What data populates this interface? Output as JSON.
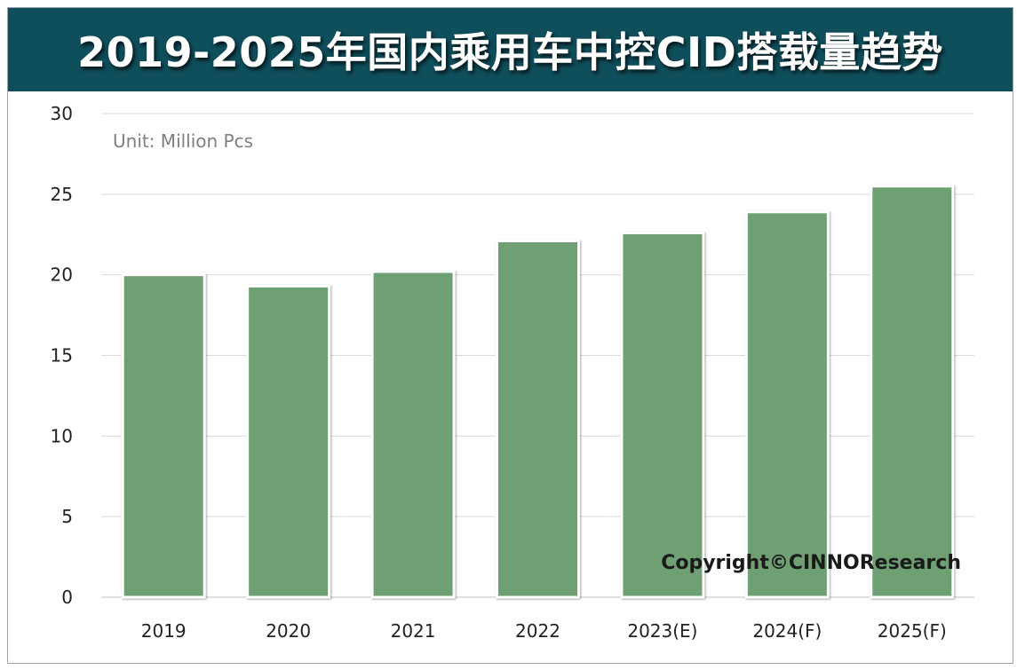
{
  "title": "2019-2025年国内乘用车中控CID搭载量趋势",
  "unit_label": "Unit: Million Pcs",
  "copyright": "Copyright©CINNOResearch",
  "colors": {
    "title_bar": "#0f4e5b",
    "bar_fill": "#6fa073",
    "bar_stroke": "#ffffff",
    "grid": "#d9d9d9"
  },
  "chart_data": {
    "type": "bar",
    "categories": [
      "2019",
      "2020",
      "2021",
      "2022",
      "2023(E)",
      "2024(F)",
      "2025(F)"
    ],
    "values": [
      20.0,
      19.3,
      20.2,
      22.1,
      22.6,
      23.9,
      25.5
    ],
    "title": "2019-2025年国内乘用车中控CID搭载量趋势",
    "ylim": [
      0,
      30
    ],
    "yticks": [
      0,
      5,
      10,
      15,
      20,
      25,
      30
    ],
    "grid": true,
    "legend": "none"
  }
}
